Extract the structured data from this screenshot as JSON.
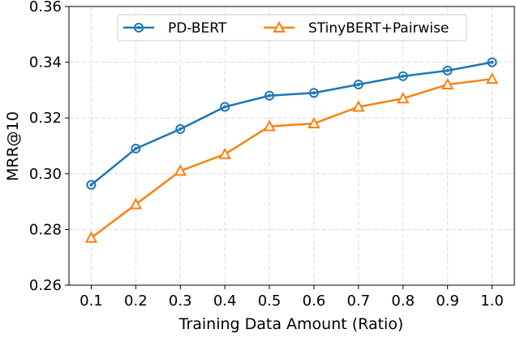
{
  "chart_data": {
    "type": "line",
    "title": "",
    "xlabel": "Training Data Amount (Ratio)",
    "ylabel": "MRR@10",
    "x": [
      0.1,
      0.2,
      0.3,
      0.4,
      0.5,
      0.6,
      0.7,
      0.8,
      0.9,
      1.0
    ],
    "xticks": [
      "0.1",
      "0.2",
      "0.3",
      "0.4",
      "0.5",
      "0.6",
      "0.7",
      "0.8",
      "0.9",
      "1.0"
    ],
    "yticks": [
      "0.26",
      "0.28",
      "0.30",
      "0.32",
      "0.34",
      "0.36"
    ],
    "ylim": [
      0.26,
      0.36
    ],
    "xlim": [
      0.05,
      1.05
    ],
    "grid": true,
    "legend_position": "top-center",
    "series": [
      {
        "name": "PD-BERT",
        "color": "#1f77b4",
        "marker": "circle",
        "values": [
          0.296,
          0.309,
          0.316,
          0.324,
          0.328,
          0.329,
          0.332,
          0.335,
          0.337,
          0.34
        ]
      },
      {
        "name": "STinyBERT+Pairwise",
        "color": "#ff7f0e",
        "marker": "triangle",
        "values": [
          0.277,
          0.289,
          0.301,
          0.307,
          0.317,
          0.318,
          0.324,
          0.327,
          0.332,
          0.334
        ]
      }
    ]
  }
}
